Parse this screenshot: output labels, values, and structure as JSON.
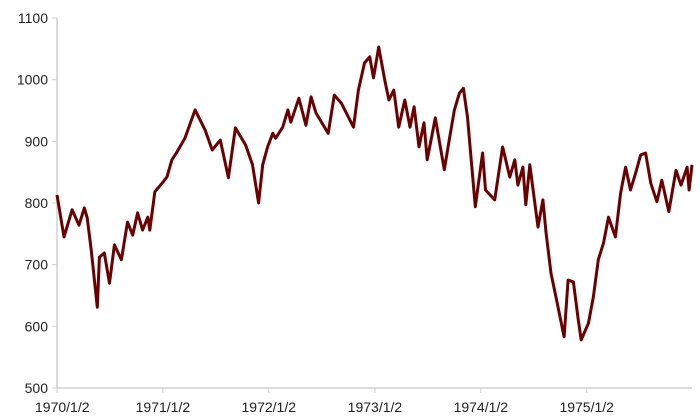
{
  "chart_data": {
    "type": "line",
    "title": "",
    "xlabel": "",
    "ylabel": "",
    "ylim": [
      500,
      1100
    ],
    "yticks": [
      500,
      600,
      700,
      800,
      900,
      1000,
      1100
    ],
    "xlim": [
      "1970-01-02",
      "1975-12-31"
    ],
    "xtick_labels": [
      "1970/1/2",
      "1971/1/2",
      "1972/1/2",
      "1973/1/2",
      "1974/1/2",
      "1975/1/2"
    ],
    "xtick_dates": [
      "1970-01-02",
      "1971-01-02",
      "1972-01-02",
      "1973-01-02",
      "1974-01-02",
      "1975-01-02"
    ],
    "grid": false,
    "legend": "none",
    "line_color": "#6b0000",
    "series": [
      {
        "points": [
          [
            "1970-01-02",
            813
          ],
          [
            "1970-01-26",
            745
          ],
          [
            "1970-02-23",
            789
          ],
          [
            "1970-03-19",
            764
          ],
          [
            "1970-04-06",
            792
          ],
          [
            "1970-04-16",
            776
          ],
          [
            "1970-04-30",
            724
          ],
          [
            "1970-05-21",
            631
          ],
          [
            "1970-05-28",
            712
          ],
          [
            "1970-06-14",
            719
          ],
          [
            "1970-07-02",
            670
          ],
          [
            "1970-07-19",
            732
          ],
          [
            "1970-08-12",
            708
          ],
          [
            "1970-09-02",
            769
          ],
          [
            "1970-09-20",
            748
          ],
          [
            "1970-10-07",
            784
          ],
          [
            "1970-10-24",
            756
          ],
          [
            "1970-11-11",
            777
          ],
          [
            "1970-11-18",
            756
          ],
          [
            "1970-12-05",
            818
          ],
          [
            "1970-12-30",
            832
          ],
          [
            "1971-01-16",
            842
          ],
          [
            "1971-02-02",
            870
          ],
          [
            "1971-02-20",
            883
          ],
          [
            "1971-03-19",
            905
          ],
          [
            "1971-04-23",
            951
          ],
          [
            "1971-05-28",
            918
          ],
          [
            "1971-06-21",
            886
          ],
          [
            "1971-07-19",
            902
          ],
          [
            "1971-08-16",
            841
          ],
          [
            "1971-09-09",
            922
          ],
          [
            "1971-10-14",
            894
          ],
          [
            "1971-11-07",
            862
          ],
          [
            "1971-11-28",
            800
          ],
          [
            "1971-12-12",
            862
          ],
          [
            "1971-12-29",
            891
          ],
          [
            "1972-01-16",
            913
          ],
          [
            "1972-01-26",
            905
          ],
          [
            "1972-02-19",
            923
          ],
          [
            "1972-03-08",
            951
          ],
          [
            "1972-03-18",
            931
          ],
          [
            "1972-04-15",
            970
          ],
          [
            "1972-05-09",
            926
          ],
          [
            "1972-05-27",
            972
          ],
          [
            "1972-06-13",
            946
          ],
          [
            "1972-07-25",
            913
          ],
          [
            "1972-08-15",
            975
          ],
          [
            "1972-09-08",
            962
          ],
          [
            "1972-10-20",
            923
          ],
          [
            "1972-11-06",
            983
          ],
          [
            "1972-11-27",
            1027
          ],
          [
            "1972-12-15",
            1037
          ],
          [
            "1972-12-28",
            1003
          ],
          [
            "1973-01-15",
            1053
          ],
          [
            "1973-02-05",
            999
          ],
          [
            "1973-02-19",
            967
          ],
          [
            "1973-03-08",
            983
          ],
          [
            "1973-03-25",
            923
          ],
          [
            "1973-04-15",
            967
          ],
          [
            "1973-05-03",
            923
          ],
          [
            "1973-05-17",
            956
          ],
          [
            "1973-06-03",
            891
          ],
          [
            "1973-06-20",
            930
          ],
          [
            "1973-07-01",
            870
          ],
          [
            "1973-07-29",
            938
          ],
          [
            "1973-08-29",
            854
          ],
          [
            "1973-09-15",
            902
          ],
          [
            "1973-10-03",
            951
          ],
          [
            "1973-10-20",
            978
          ],
          [
            "1973-11-03",
            986
          ],
          [
            "1973-11-17",
            939
          ],
          [
            "1973-12-14",
            794
          ],
          [
            "1974-01-08",
            881
          ],
          [
            "1974-01-18",
            821
          ],
          [
            "1974-02-19",
            805
          ],
          [
            "1974-03-18",
            891
          ],
          [
            "1974-04-12",
            842
          ],
          [
            "1974-04-29",
            870
          ],
          [
            "1974-05-10",
            829
          ],
          [
            "1974-05-27",
            858
          ],
          [
            "1974-06-06",
            797
          ],
          [
            "1974-06-20",
            862
          ],
          [
            "1974-07-18",
            761
          ],
          [
            "1974-08-04",
            805
          ],
          [
            "1974-08-15",
            751
          ],
          [
            "1974-09-01",
            686
          ],
          [
            "1974-09-18",
            648
          ],
          [
            "1974-10-16",
            583
          ],
          [
            "1974-10-30",
            675
          ],
          [
            "1974-11-17",
            672
          ],
          [
            "1974-12-04",
            610
          ],
          [
            "1974-12-14",
            578
          ],
          [
            "1975-01-08",
            605
          ],
          [
            "1975-01-25",
            648
          ],
          [
            "1975-02-11",
            708
          ],
          [
            "1975-03-01",
            735
          ],
          [
            "1975-03-18",
            777
          ],
          [
            "1975-04-11",
            745
          ],
          [
            "1975-04-29",
            816
          ],
          [
            "1975-05-16",
            858
          ],
          [
            "1975-06-02",
            821
          ],
          [
            "1975-06-20",
            849
          ],
          [
            "1975-07-07",
            878
          ],
          [
            "1975-07-24",
            881
          ],
          [
            "1975-08-11",
            832
          ],
          [
            "1975-09-01",
            802
          ],
          [
            "1975-09-18",
            837
          ],
          [
            "1975-10-12",
            786
          ],
          [
            "1975-11-06",
            853
          ],
          [
            "1975-11-23",
            829
          ],
          [
            "1975-12-14",
            858
          ],
          [
            "1975-12-21",
            821
          ],
          [
            "1975-12-31",
            862
          ]
        ]
      }
    ]
  }
}
